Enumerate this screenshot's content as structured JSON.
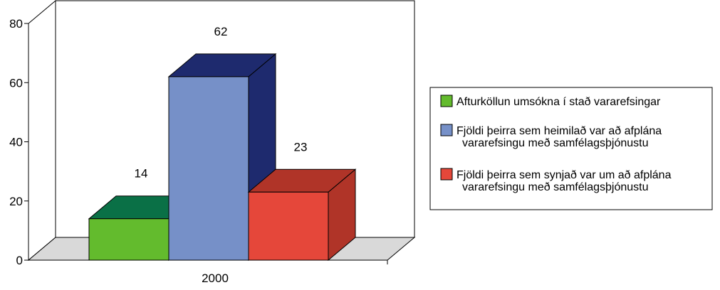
{
  "chart_data": {
    "type": "bar",
    "categories": [
      "2000"
    ],
    "series": [
      {
        "name": "Afturköllun umsókna í stað vararefsingar",
        "values": [
          14
        ],
        "color": "#63bb2d",
        "dark": "#0a7046"
      },
      {
        "name": "Fjöldi þeirra sem heimilað var að afplána vararefsingu með samfélagsþjónustu",
        "values": [
          62
        ],
        "color": "#7690c8",
        "dark": "#1e2a6e"
      },
      {
        "name": "Fjöldi þeirra sem synjað var um að afplána vararefsingu með samfélagsþjónustu",
        "values": [
          23
        ],
        "color": "#e5473a",
        "dark": "#b03428"
      }
    ],
    "data_labels": [
      "14",
      "62",
      "23"
    ],
    "yticks": [
      "0",
      "20",
      "40",
      "60",
      "80"
    ],
    "ylim": [
      0,
      80
    ],
    "legend_lines": [
      [
        "Afturköllun umsókna í stað vararefsingar"
      ],
      [
        "Fjöldi þeirra sem heimilað var að afplána",
        "vararefsingu með samfélagsþjónustu"
      ],
      [
        "Fjöldi þeirra sem synjað var um að afplána",
        "vararefsingu með samfélagsþjónustu"
      ]
    ],
    "legend_position": "right",
    "grid": false
  }
}
